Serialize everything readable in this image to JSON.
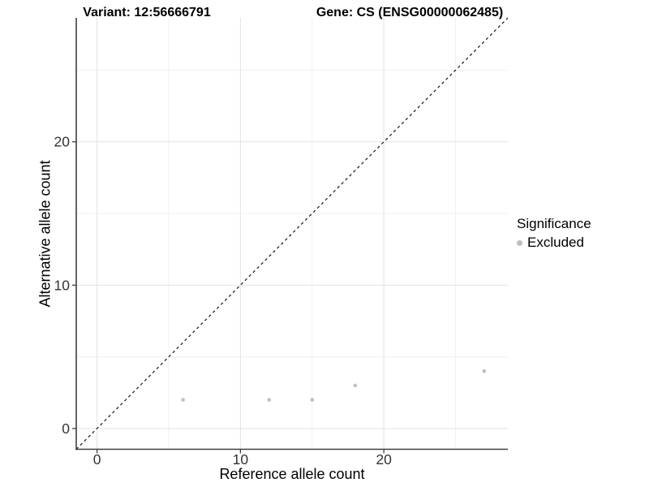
{
  "figure": {
    "title_left": "Variant: 12:56666791",
    "title_right": "Gene: CS (ENSG00000062485)"
  },
  "chart_data": {
    "type": "scatter",
    "title": "Variant: 12:56666791   Gene: CS (ENSG00000062485)",
    "xlabel": "Reference allele count",
    "ylabel": "Alternative allele count",
    "xlim": [
      -1.45,
      28.65
    ],
    "ylim": [
      -1.45,
      28.65
    ],
    "x_major_ticks": [
      0,
      10,
      20
    ],
    "y_major_ticks": [
      0,
      10,
      20
    ],
    "x_minor_ticks": [
      5,
      15,
      25
    ],
    "y_minor_ticks": [
      5,
      15,
      25
    ],
    "grid": true,
    "identity_line": {
      "slope": 1,
      "intercept": 0,
      "style": "dashed",
      "color": "#000000"
    },
    "series": [
      {
        "name": "Excluded",
        "color": "#c0c0c0",
        "points": [
          {
            "x": 6,
            "y": 2
          },
          {
            "x": 12,
            "y": 2
          },
          {
            "x": 15,
            "y": 2
          },
          {
            "x": 18,
            "y": 3
          },
          {
            "x": 27,
            "y": 4
          }
        ]
      }
    ],
    "legend": {
      "title": "Significance",
      "position": "right",
      "entries": [
        {
          "label": "Excluded",
          "color": "#bebebe"
        }
      ]
    },
    "style_colors": {
      "axis_line": "#404040",
      "tick_mark": "#333333",
      "tick_label": "#333333",
      "grid_major": "#e3e3e3",
      "grid_minor": "#f0f0f0"
    }
  }
}
